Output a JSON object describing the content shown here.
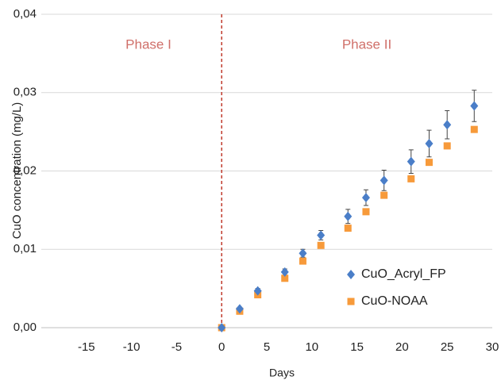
{
  "chart_data": {
    "type": "scatter",
    "x_label": "Days",
    "y_label": "CuO concentration (mg/L)",
    "annotations": [
      "Phase I",
      "Phase II"
    ],
    "xlim": [
      -20,
      30
    ],
    "xticks": [
      -15,
      -10,
      -5,
      0,
      5,
      10,
      15,
      20,
      25,
      30
    ],
    "ylim": [
      0,
      0.04
    ],
    "yticks": [
      {
        "value": 0,
        "label": "0,00"
      },
      {
        "value": 0.01,
        "label": "0,01"
      },
      {
        "value": 0.02,
        "label": "0,02"
      },
      {
        "value": 0.03,
        "label": "0,03"
      },
      {
        "value": 0.04,
        "label": "0,04"
      }
    ],
    "grid": true,
    "legend": "lower right",
    "phase_line_x": 0,
    "series": [
      {
        "name": "CuO_Acryl_FP",
        "color": "#4a7ec8",
        "marker": "diamond",
        "x": [
          0,
          2,
          4,
          7,
          9,
          11,
          14,
          16,
          18,
          21,
          23,
          25,
          28
        ],
        "values": [
          0,
          0.0024,
          0.0047,
          0.0071,
          0.0095,
          0.0118,
          0.0142,
          0.0166,
          0.0188,
          0.0212,
          0.0235,
          0.0259,
          0.0283
        ],
        "errors": [
          0,
          0.0002,
          0.0003,
          0.0004,
          0.0005,
          0.0006,
          0.0009,
          0.001,
          0.0013,
          0.0015,
          0.0017,
          0.0018,
          0.002
        ]
      },
      {
        "name": "CuO-NOAA",
        "color": "#f79a3a",
        "marker": "square",
        "x": [
          0,
          2,
          4,
          7,
          9,
          11,
          14,
          16,
          18,
          21,
          23,
          25,
          28
        ],
        "values": [
          0,
          0.0021,
          0.0042,
          0.0063,
          0.0085,
          0.0105,
          0.0127,
          0.0148,
          0.0169,
          0.019,
          0.0211,
          0.0232,
          0.0253
        ]
      }
    ]
  }
}
